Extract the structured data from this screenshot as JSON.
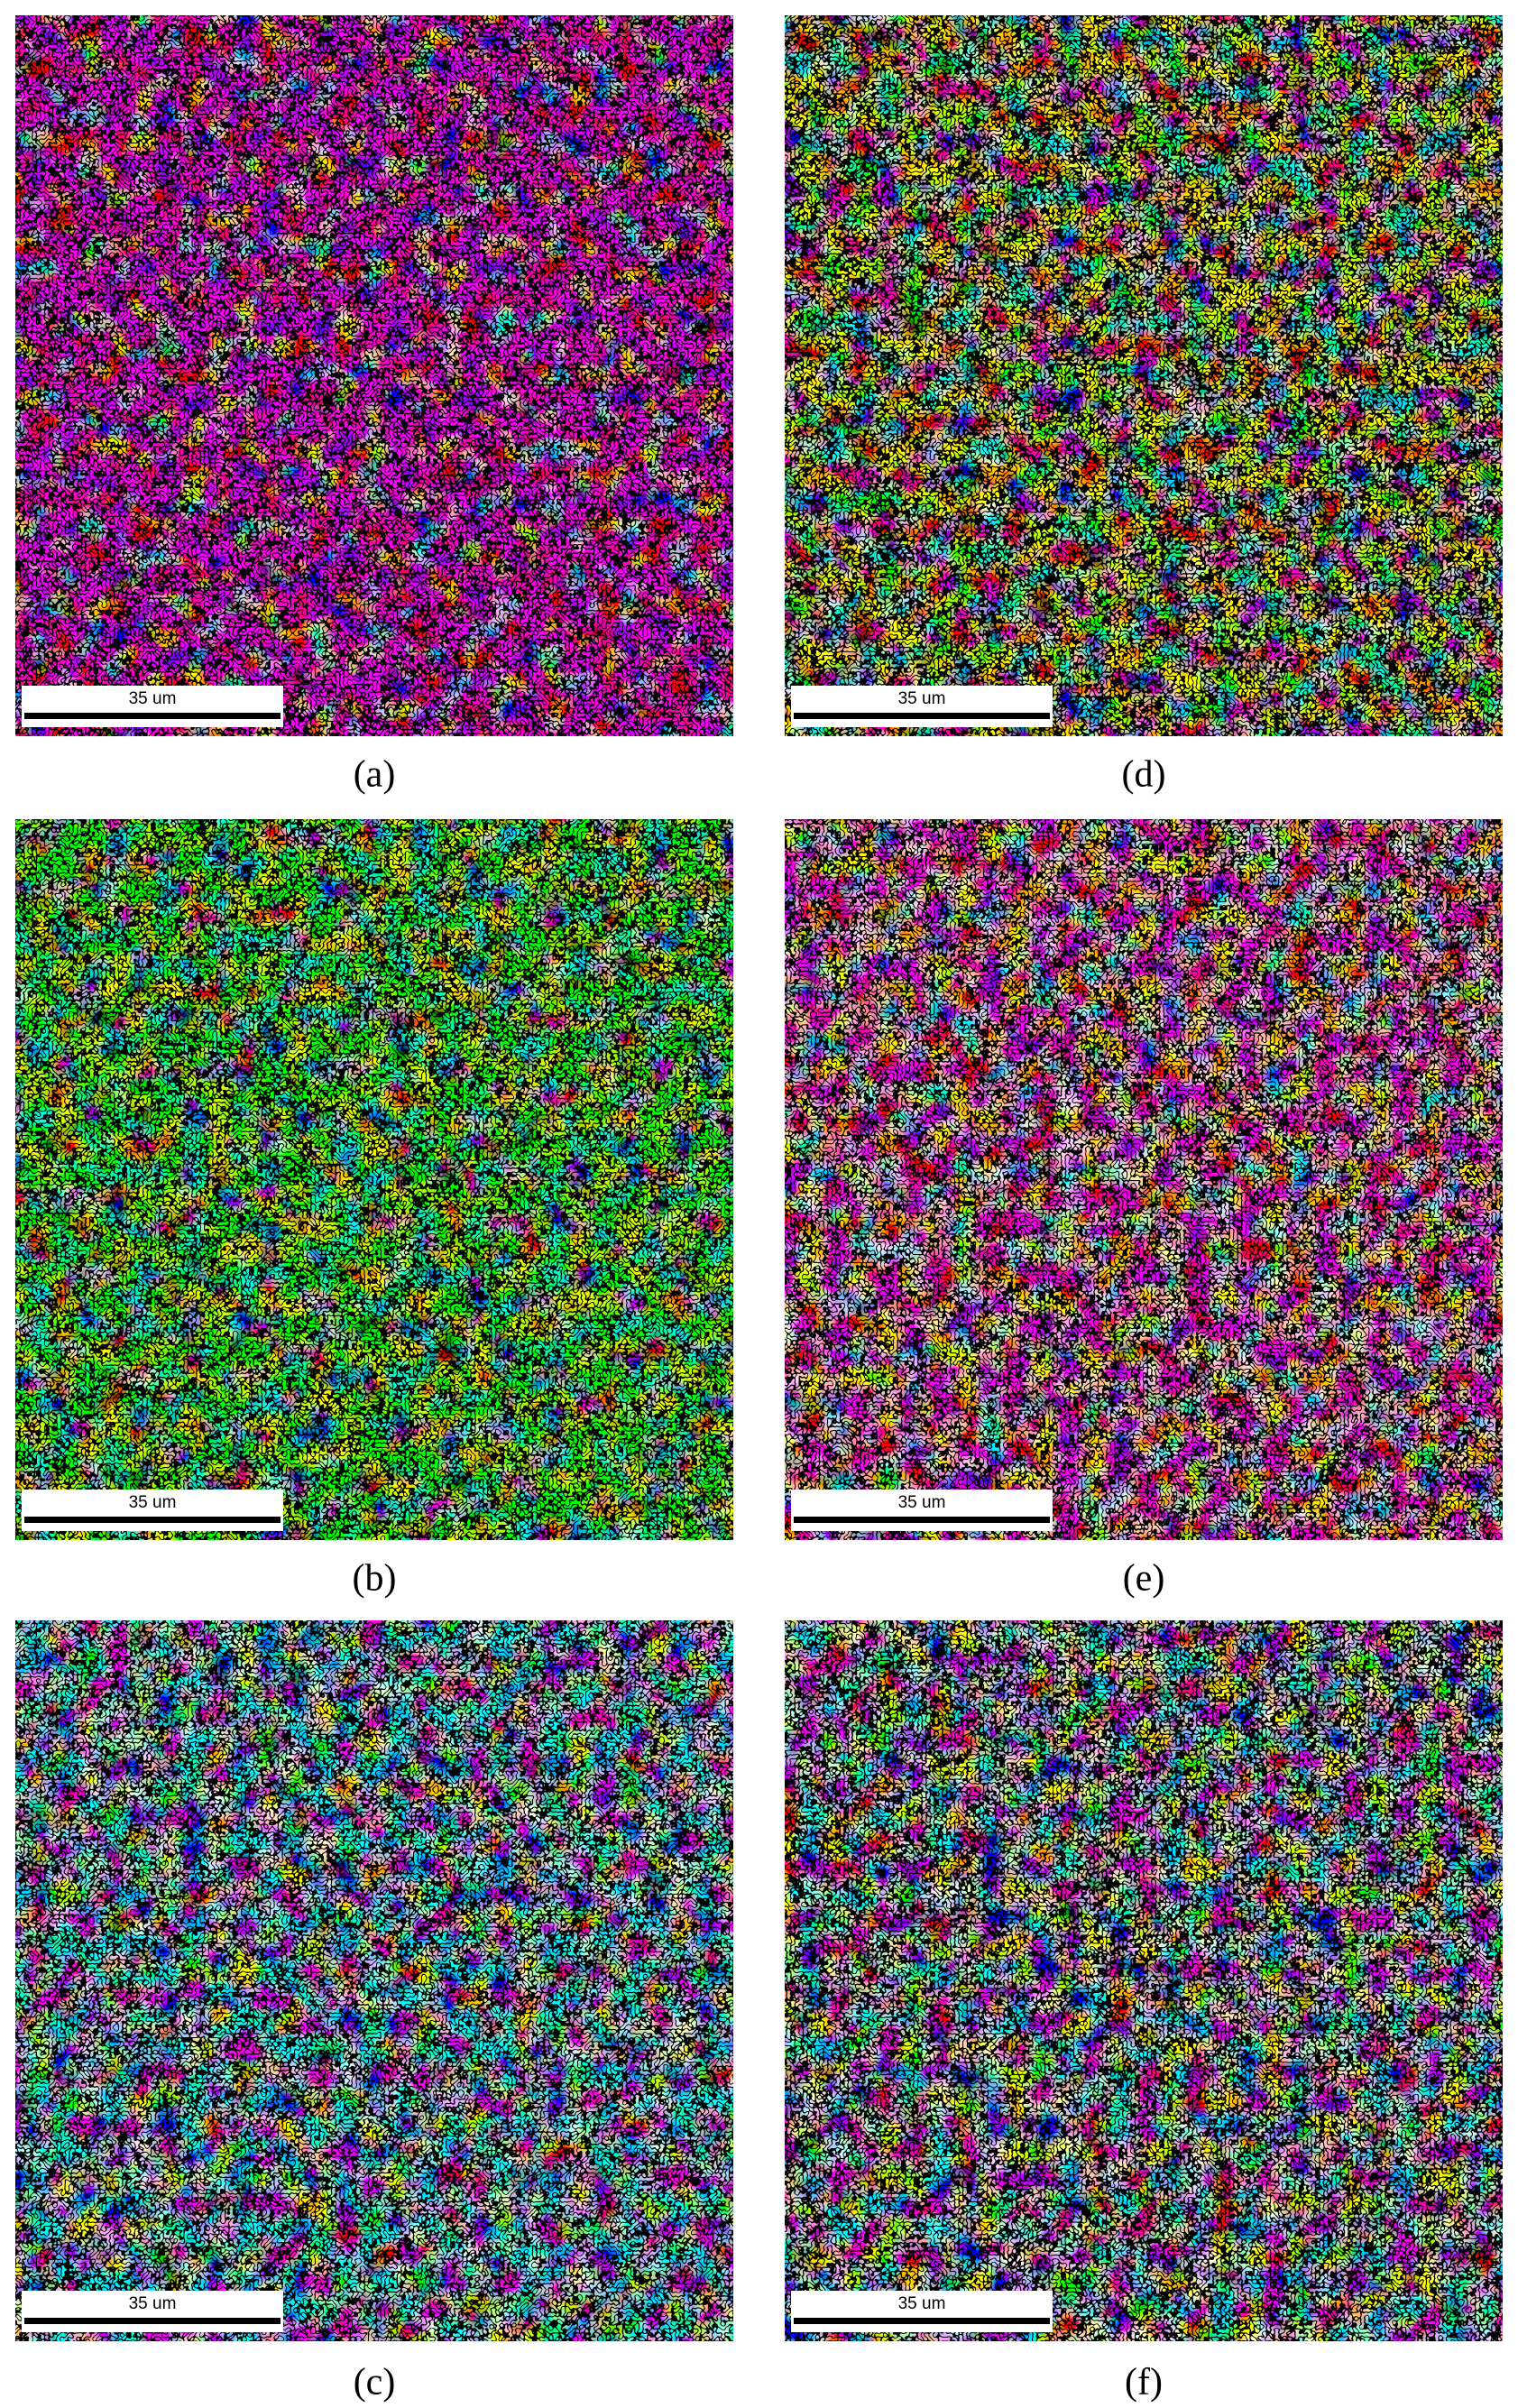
{
  "panels": [
    {
      "label": "(a)",
      "scale_bar": "35 um"
    },
    {
      "label": "(b)",
      "scale_bar": "35 um"
    },
    {
      "label": "(c)",
      "scale_bar": "35 um"
    },
    {
      "label": "(d)",
      "scale_bar": "35 um"
    },
    {
      "label": "(e)",
      "scale_bar": "35 um"
    },
    {
      "label": "(f)",
      "scale_bar": "35 um"
    }
  ]
}
